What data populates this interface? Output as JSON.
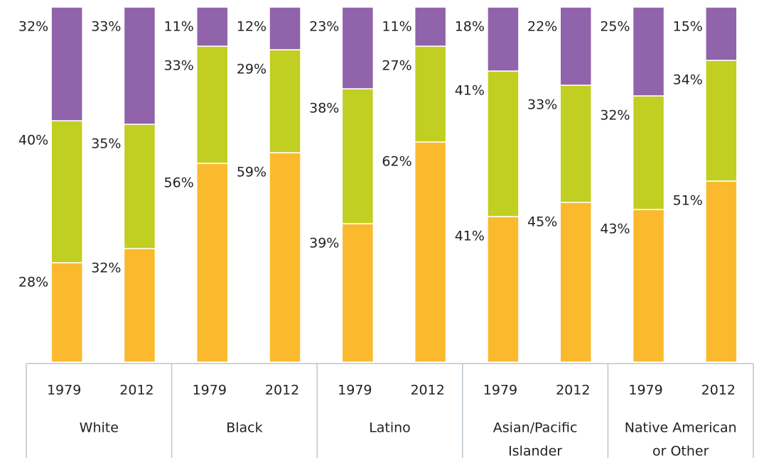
{
  "chart_data": {
    "type": "stacked_bar",
    "categories": [
      "1979",
      "2012",
      "1979",
      "2012",
      "1979",
      "2012",
      "1979",
      "2012",
      "1979",
      "2012"
    ],
    "groups": [
      [
        "White"
      ],
      [
        "Black"
      ],
      [
        "Latino"
      ],
      [
        "Asian/Pacific",
        "Islander"
      ],
      [
        "Native American",
        "or Other"
      ]
    ],
    "ylim": [
      0,
      100
    ],
    "series": [
      {
        "color": "#fbba2e",
        "values": [
          28,
          32,
          56,
          59,
          39,
          62,
          41,
          45,
          43,
          51
        ],
        "value_labels": [
          "28%",
          "32%",
          "56%",
          "59%",
          "39%",
          "62%",
          "41%",
          "45%",
          "43%",
          "51%"
        ]
      },
      {
        "color": "#c0cf22",
        "values": [
          40,
          35,
          33,
          29,
          38,
          27,
          41,
          33,
          32,
          34
        ],
        "value_labels": [
          "40%",
          "35%",
          "33%",
          "29%",
          "38%",
          "27%",
          "41%",
          "33%",
          "32%",
          "34%"
        ]
      },
      {
        "color": "#9063ab",
        "values": [
          32,
          33,
          11,
          12,
          23,
          11,
          18,
          22,
          25,
          15
        ],
        "value_labels": [
          "32%",
          "33%",
          "11%",
          "12%",
          "23%",
          "11%",
          "18%",
          "22%",
          "25%",
          "15%"
        ]
      }
    ]
  }
}
